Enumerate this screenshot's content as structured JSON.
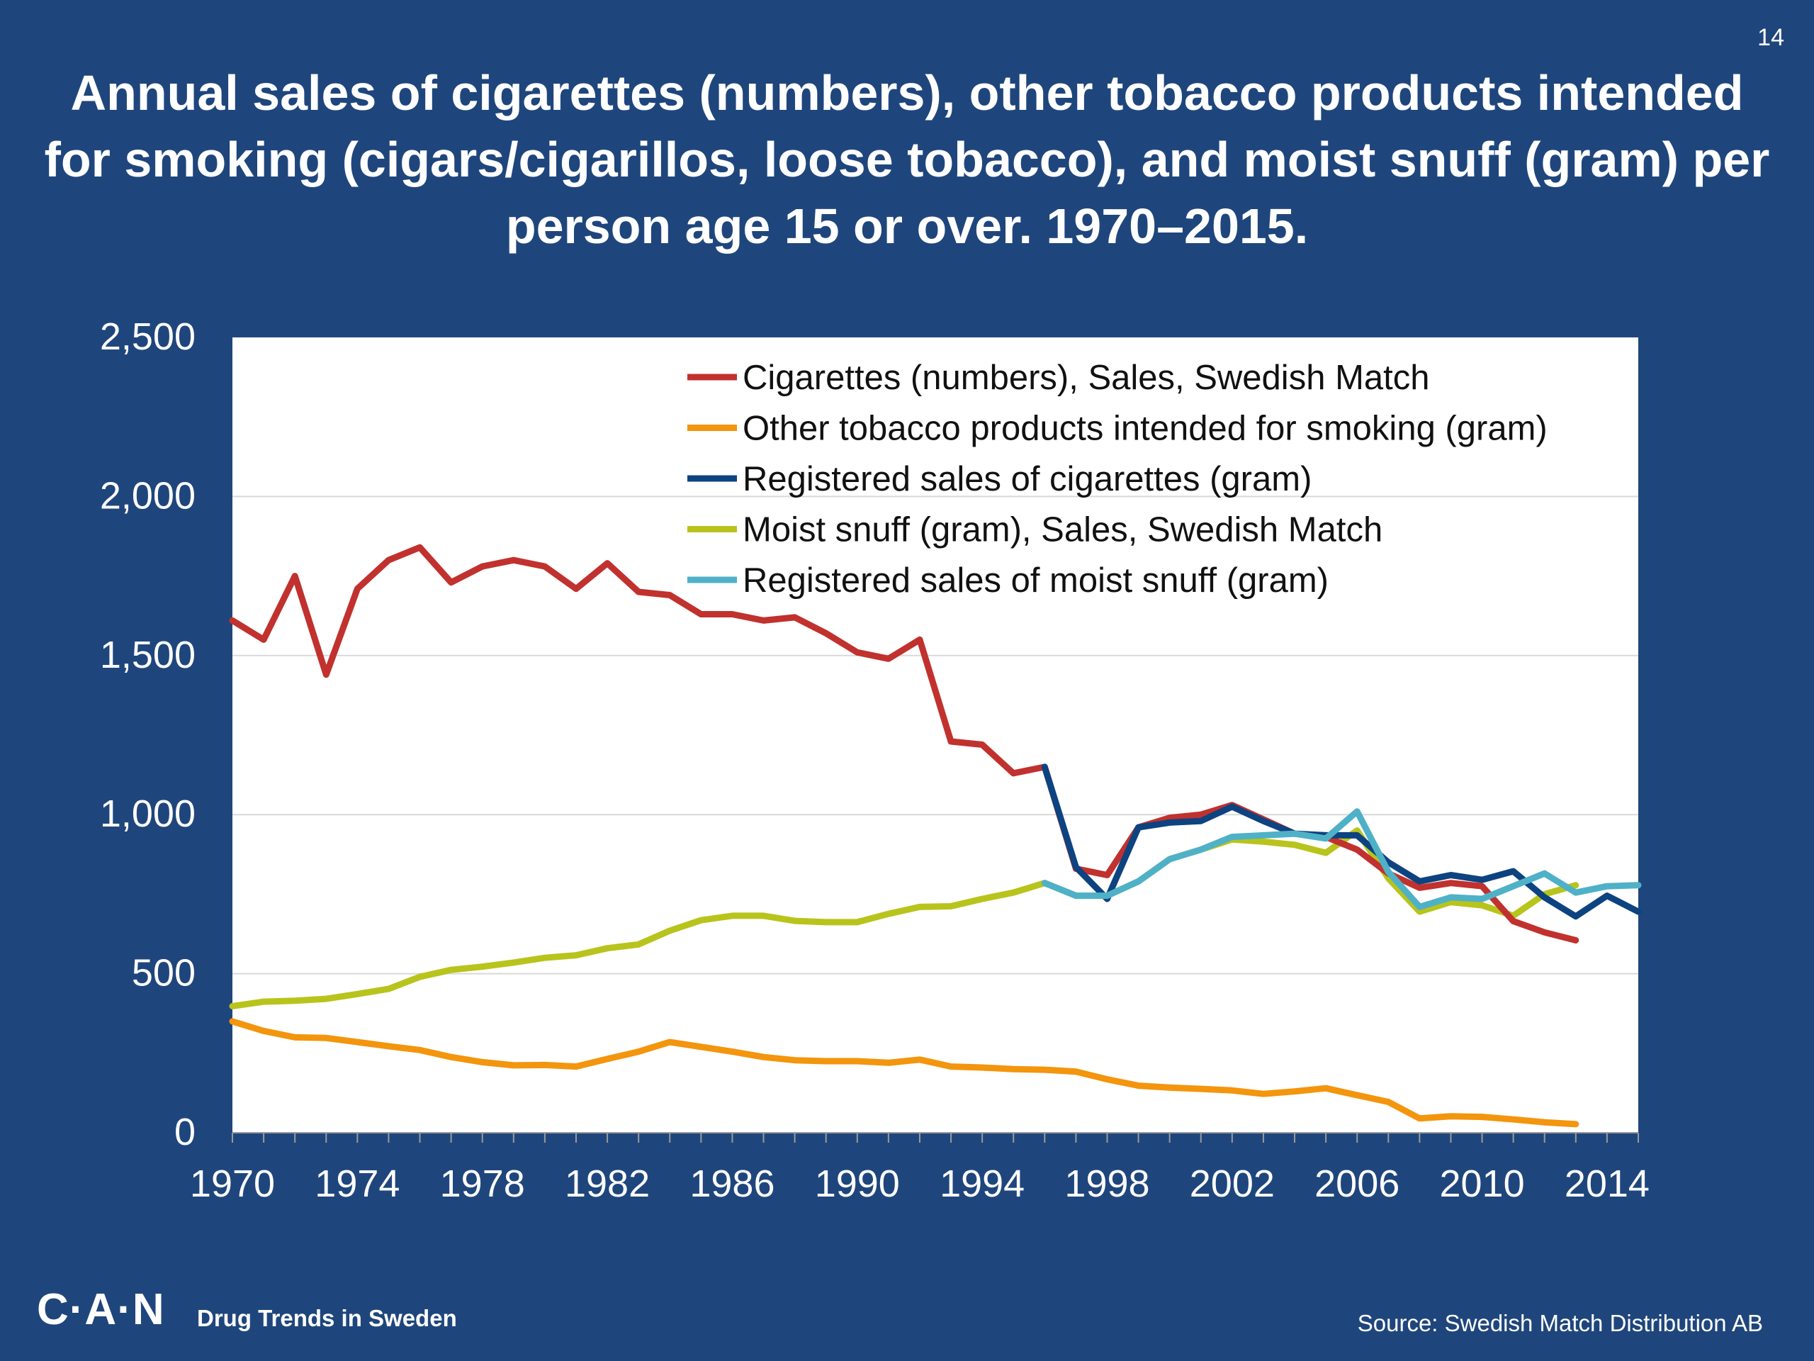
{
  "page": {
    "number": "14",
    "title": "Annual sales of cigarettes (numbers), other tobacco products intended for smoking (cigars/cigarillos, loose tobacco), and moist snuff (gram) per person age 15 or over. 1970–2015."
  },
  "footer": {
    "logo": "C·A·N",
    "tagline": "Drug Trends in Sweden",
    "source": "Source: Swedish Match Distribution AB"
  },
  "colors": {
    "background": "#1f467c",
    "plot_background": "#ffffff",
    "gridline": "#d9d9d9",
    "text": "#ffffff"
  },
  "chart_data": {
    "type": "line",
    "title": "",
    "xlabel": "",
    "ylabel": "",
    "xlim": [
      1970,
      2015
    ],
    "ylim": [
      0,
      2500
    ],
    "x_ticks": [
      1970,
      1974,
      1978,
      1982,
      1986,
      1990,
      1994,
      1998,
      2002,
      2006,
      2010,
      2014
    ],
    "y_ticks": [
      0,
      500,
      1000,
      1500,
      2000,
      2500
    ],
    "y_tick_labels": [
      "0",
      "500",
      "1,000",
      "1,500",
      "2,000",
      "2,500"
    ],
    "grid": true,
    "legend_position": "top-right",
    "series": [
      {
        "name": "Other tobacco products intended for smoking (gram)",
        "color": "#f3950d",
        "x": [
          1970,
          1971,
          1972,
          1973,
          1974,
          1975,
          1976,
          1977,
          1978,
          1979,
          1980,
          1981,
          1982,
          1983,
          1984,
          1985,
          1986,
          1987,
          1988,
          1989,
          1990,
          1991,
          1992,
          1993,
          1994,
          1995,
          1996,
          1997,
          1998,
          1999,
          2000,
          2001,
          2002,
          2003,
          2004,
          2005,
          2006,
          2007,
          2008,
          2009,
          2010,
          2011,
          2012,
          2013
        ],
        "y": [
          350,
          320,
          300,
          298,
          285,
          272,
          260,
          238,
          222,
          212,
          213,
          208,
          232,
          255,
          285,
          270,
          255,
          238,
          228,
          225,
          225,
          220,
          230,
          208,
          205,
          200,
          198,
          192,
          168,
          148,
          142,
          138,
          133,
          122,
          130,
          140,
          118,
          97,
          45,
          52,
          50,
          42,
          33,
          27
        ]
      },
      {
        "name": "Moist snuff (gram), Sales, Swedish Match",
        "color": "#b8c41c",
        "x": [
          1970,
          1971,
          1972,
          1973,
          1974,
          1975,
          1976,
          1977,
          1978,
          1979,
          1980,
          1981,
          1982,
          1983,
          1984,
          1985,
          1986,
          1987,
          1988,
          1989,
          1990,
          1991,
          1992,
          1993,
          1994,
          1995,
          1996,
          1997,
          1998,
          1999,
          2000,
          2001,
          2002,
          2003,
          2004,
          2005,
          2006,
          2007,
          2008,
          2009,
          2010,
          2011,
          2012,
          2013
        ],
        "y": [
          398,
          412,
          415,
          421,
          436,
          452,
          490,
          512,
          522,
          535,
          550,
          558,
          580,
          592,
          635,
          668,
          682,
          682,
          666,
          662,
          662,
          688,
          710,
          712,
          735,
          755,
          785,
          745,
          745,
          790,
          860,
          890,
          922,
          915,
          905,
          880,
          950,
          800,
          695,
          725,
          715,
          682,
          750,
          778
        ]
      },
      {
        "name": "Cigarettes (numbers), Sales, Swedish Match",
        "color": "#c1312e",
        "x": [
          1970,
          1971,
          1972,
          1973,
          1974,
          1975,
          1976,
          1977,
          1978,
          1979,
          1980,
          1981,
          1982,
          1983,
          1984,
          1985,
          1986,
          1987,
          1988,
          1989,
          1990,
          1991,
          1992,
          1993,
          1994,
          1995,
          1996,
          1997,
          1998,
          1999,
          2000,
          2001,
          2002,
          2003,
          2004,
          2005,
          2006,
          2007,
          2008,
          2009,
          2010,
          2011,
          2012,
          2013
        ],
        "y": [
          1610,
          1550,
          1750,
          1440,
          1710,
          1800,
          1840,
          1730,
          1780,
          1800,
          1780,
          1710,
          1790,
          1700,
          1690,
          1630,
          1630,
          1610,
          1620,
          1570,
          1510,
          1490,
          1550,
          1230,
          1220,
          1130,
          1150,
          830,
          810,
          960,
          990,
          1000,
          1030,
          985,
          940,
          930,
          890,
          815,
          770,
          785,
          775,
          665,
          630,
          605
        ]
      },
      {
        "name": "Registered sales of cigarettes (gram)",
        "color": "#0d4380",
        "x": [
          1996,
          1997,
          1998,
          1999,
          2000,
          2001,
          2002,
          2003,
          2004,
          2005,
          2006,
          2007,
          2008,
          2009,
          2010,
          2011,
          2012,
          2013,
          2014,
          2015
        ],
        "y": [
          1150,
          835,
          735,
          960,
          975,
          980,
          1025,
          980,
          940,
          935,
          935,
          850,
          790,
          810,
          795,
          822,
          740,
          680,
          745,
          695
        ]
      },
      {
        "name": "Registered sales of moist snuff (gram)",
        "color": "#4fb1c7",
        "x": [
          1996,
          1997,
          1998,
          1999,
          2000,
          2001,
          2002,
          2003,
          2004,
          2005,
          2006,
          2007,
          2008,
          2009,
          2010,
          2011,
          2012,
          2013,
          2014,
          2015
        ],
        "y": [
          785,
          745,
          745,
          790,
          860,
          890,
          930,
          935,
          940,
          925,
          1010,
          820,
          710,
          740,
          735,
          775,
          815,
          755,
          775,
          778
        ]
      }
    ],
    "legend_order": [
      "Cigarettes (numbers), Sales, Swedish Match",
      "Other tobacco products intended for smoking (gram)",
      "Registered sales of cigarettes (gram)",
      "Moist snuff (gram), Sales, Swedish Match",
      "Registered sales of moist snuff (gram)"
    ]
  }
}
